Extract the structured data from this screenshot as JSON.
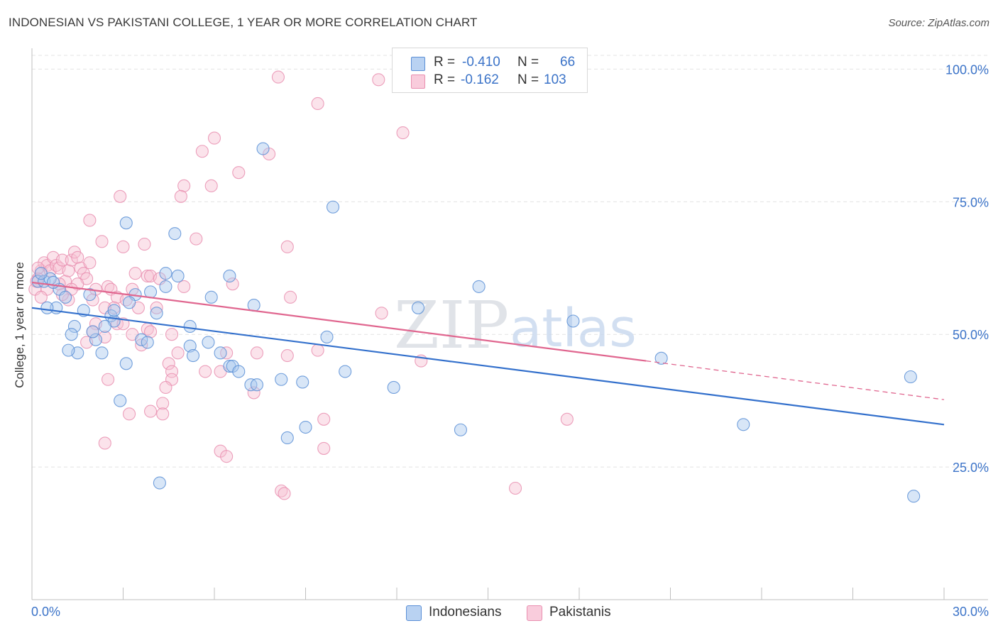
{
  "header": {
    "title": "INDONESIAN VS PAKISTANI COLLEGE, 1 YEAR OR MORE CORRELATION CHART",
    "source": "Source: ZipAtlas.com"
  },
  "colors": {
    "blue": "#5b8fd6",
    "blue_fill": "#a9c8ee",
    "blue_line": "#3370cc",
    "pink": "#e98fb0",
    "pink_fill": "#f6c0d3",
    "pink_line": "#e0668f",
    "axis_text": "#3b73c8"
  },
  "stats_legend": {
    "rows": [
      {
        "r_label": "R =",
        "r_value": "-0.410",
        "n_label": "N =",
        "n_value": "66"
      },
      {
        "r_label": "R =",
        "r_value": "-0.162",
        "n_label": "N =",
        "n_value": "103"
      }
    ]
  },
  "bottom_legend": {
    "items": [
      {
        "label": "Indonesians"
      },
      {
        "label": "Pakistanis"
      }
    ]
  },
  "chart_data": {
    "type": "scatter",
    "title": "INDONESIAN VS PAKISTANI COLLEGE, 1 YEAR OR MORE CORRELATION CHART",
    "xlabel": "",
    "ylabel": "College, 1 year or more",
    "xlim": [
      0,
      30
    ],
    "ylim": [
      0,
      105
    ],
    "x_tick_labels": [
      "0.0%",
      "30.0%"
    ],
    "y_ticks": [
      25,
      50,
      75,
      100
    ],
    "y_tick_labels": [
      "25.0%",
      "50.0%",
      "75.0%",
      "100.0%"
    ],
    "watermark": {
      "zip": "ZIP",
      "atlas": "atlas"
    },
    "series": [
      {
        "name": "Indonesians",
        "R": -0.41,
        "N": 66,
        "trend": {
          "x0": 0,
          "y0": 55.0,
          "x1": 30,
          "y1": 33.0
        },
        "points": [
          [
            0.2,
            60.0
          ],
          [
            0.4,
            60.0
          ],
          [
            0.6,
            60.5
          ],
          [
            0.9,
            58.5
          ],
          [
            1.1,
            57.0
          ],
          [
            0.8,
            55.0
          ],
          [
            0.5,
            55.0
          ],
          [
            1.7,
            54.5
          ],
          [
            2.6,
            53.5
          ],
          [
            2.7,
            52.5
          ],
          [
            2.4,
            51.5
          ],
          [
            1.4,
            51.5
          ],
          [
            1.3,
            50.0
          ],
          [
            2.1,
            49.0
          ],
          [
            3.6,
            49.0
          ],
          [
            3.8,
            48.5
          ],
          [
            3.4,
            57.5
          ],
          [
            3.9,
            58.0
          ],
          [
            4.4,
            61.5
          ],
          [
            4.8,
            61.0
          ],
          [
            6.5,
            61.0
          ],
          [
            5.9,
            57.0
          ],
          [
            7.3,
            55.5
          ],
          [
            4.1,
            54.0
          ],
          [
            5.2,
            51.5
          ],
          [
            5.8,
            48.5
          ],
          [
            5.2,
            47.8
          ],
          [
            6.2,
            46.5
          ],
          [
            1.5,
            46.5
          ],
          [
            2.3,
            46.5
          ],
          [
            3.1,
            44.5
          ],
          [
            5.3,
            46.0
          ],
          [
            6.5,
            44.0
          ],
          [
            6.6,
            44.0
          ],
          [
            6.8,
            43.0
          ],
          [
            7.2,
            40.5
          ],
          [
            7.4,
            40.5
          ],
          [
            8.2,
            41.5
          ],
          [
            8.9,
            41.0
          ],
          [
            10.3,
            43.0
          ],
          [
            9.7,
            49.5
          ],
          [
            11.9,
            40.0
          ],
          [
            2.9,
            37.5
          ],
          [
            9.0,
            32.5
          ],
          [
            8.4,
            30.5
          ],
          [
            14.1,
            32.0
          ],
          [
            4.2,
            22.0
          ],
          [
            3.1,
            71.0
          ],
          [
            4.7,
            69.0
          ],
          [
            7.6,
            85.0
          ],
          [
            9.9,
            74.0
          ],
          [
            14.7,
            59.0
          ],
          [
            12.7,
            55.0
          ],
          [
            17.8,
            52.5
          ],
          [
            20.7,
            45.5
          ],
          [
            28.9,
            42.0
          ],
          [
            23.4,
            33.0
          ],
          [
            29.0,
            19.5
          ],
          [
            2.7,
            54.5
          ],
          [
            3.2,
            56.0
          ],
          [
            1.9,
            57.5
          ],
          [
            0.3,
            61.5
          ],
          [
            0.7,
            59.8
          ],
          [
            4.4,
            59.0
          ],
          [
            1.2,
            47.0
          ],
          [
            2.0,
            50.5
          ]
        ]
      },
      {
        "name": "Pakistanis",
        "R": -0.162,
        "N": 103,
        "trend": {
          "x0": 0,
          "y0": 59.8,
          "x1": 20.2,
          "y1": 45.0
        },
        "trend_dashed": {
          "x0": 20.2,
          "y0": 45.0,
          "x1": 30,
          "y1": 37.7
        },
        "points": [
          [
            0.1,
            58.5
          ],
          [
            0.3,
            62.0
          ],
          [
            0.4,
            63.5
          ],
          [
            0.5,
            63.0
          ],
          [
            0.6,
            62.0
          ],
          [
            0.7,
            64.5
          ],
          [
            0.8,
            63.0
          ],
          [
            0.9,
            62.5
          ],
          [
            1.0,
            64.0
          ],
          [
            1.1,
            60.0
          ],
          [
            1.2,
            62.0
          ],
          [
            1.3,
            64.0
          ],
          [
            1.4,
            65.5
          ],
          [
            1.5,
            64.5
          ],
          [
            1.6,
            62.5
          ],
          [
            1.7,
            61.5
          ],
          [
            1.9,
            63.5
          ],
          [
            1.8,
            60.5
          ],
          [
            1.5,
            59.5
          ],
          [
            1.3,
            58.5
          ],
          [
            1.2,
            56.5
          ],
          [
            0.9,
            59.5
          ],
          [
            1.0,
            57.5
          ],
          [
            0.5,
            58.5
          ],
          [
            0.3,
            57.0
          ],
          [
            0.2,
            60.5
          ],
          [
            1.9,
            71.5
          ],
          [
            2.3,
            67.5
          ],
          [
            2.9,
            76.0
          ],
          [
            3.0,
            66.5
          ],
          [
            3.7,
            67.0
          ],
          [
            3.4,
            61.5
          ],
          [
            3.8,
            61.0
          ],
          [
            3.9,
            61.0
          ],
          [
            2.5,
            59.0
          ],
          [
            2.1,
            58.5
          ],
          [
            2.6,
            58.5
          ],
          [
            3.3,
            58.5
          ],
          [
            2.8,
            57.0
          ],
          [
            3.1,
            56.5
          ],
          [
            2.0,
            56.5
          ],
          [
            2.7,
            55.0
          ],
          [
            2.4,
            55.0
          ],
          [
            3.5,
            55.0
          ],
          [
            4.1,
            55.0
          ],
          [
            2.1,
            52.0
          ],
          [
            2.8,
            52.0
          ],
          [
            3.0,
            52.0
          ],
          [
            3.8,
            51.0
          ],
          [
            3.9,
            50.5
          ],
          [
            4.6,
            50.0
          ],
          [
            2.4,
            49.5
          ],
          [
            3.6,
            48.0
          ],
          [
            1.8,
            48.5
          ],
          [
            4.8,
            46.5
          ],
          [
            6.4,
            46.5
          ],
          [
            7.4,
            46.5
          ],
          [
            8.4,
            46.0
          ],
          [
            9.4,
            47.0
          ],
          [
            4.5,
            44.5
          ],
          [
            4.6,
            43.0
          ],
          [
            5.7,
            43.0
          ],
          [
            6.2,
            43.0
          ],
          [
            4.6,
            41.5
          ],
          [
            4.4,
            40.0
          ],
          [
            7.3,
            39.0
          ],
          [
            4.3,
            37.0
          ],
          [
            4.3,
            35.0
          ],
          [
            3.2,
            35.0
          ],
          [
            3.9,
            35.5
          ],
          [
            2.5,
            41.5
          ],
          [
            2.4,
            29.5
          ],
          [
            6.2,
            28.0
          ],
          [
            6.4,
            27.0
          ],
          [
            9.6,
            28.5
          ],
          [
            9.6,
            34.0
          ],
          [
            8.2,
            20.5
          ],
          [
            8.3,
            20.0
          ],
          [
            15.9,
            21.0
          ],
          [
            17.6,
            34.0
          ],
          [
            12.8,
            45.0
          ],
          [
            5.0,
            78.0
          ],
          [
            5.6,
            84.5
          ],
          [
            6.0,
            87.0
          ],
          [
            5.9,
            78.0
          ],
          [
            4.9,
            76.0
          ],
          [
            6.8,
            80.5
          ],
          [
            7.8,
            84.0
          ],
          [
            8.1,
            98.5
          ],
          [
            9.4,
            93.5
          ],
          [
            11.4,
            98.0
          ],
          [
            12.2,
            88.0
          ],
          [
            8.4,
            66.5
          ],
          [
            5.4,
            68.0
          ],
          [
            6.6,
            59.5
          ],
          [
            8.5,
            57.0
          ],
          [
            11.5,
            54.0
          ],
          [
            5.0,
            59.0
          ],
          [
            4.2,
            60.5
          ],
          [
            3.3,
            50.0
          ],
          [
            2.0,
            50.5
          ],
          [
            0.2,
            62.5
          ],
          [
            0.15,
            60.0
          ]
        ]
      }
    ]
  }
}
